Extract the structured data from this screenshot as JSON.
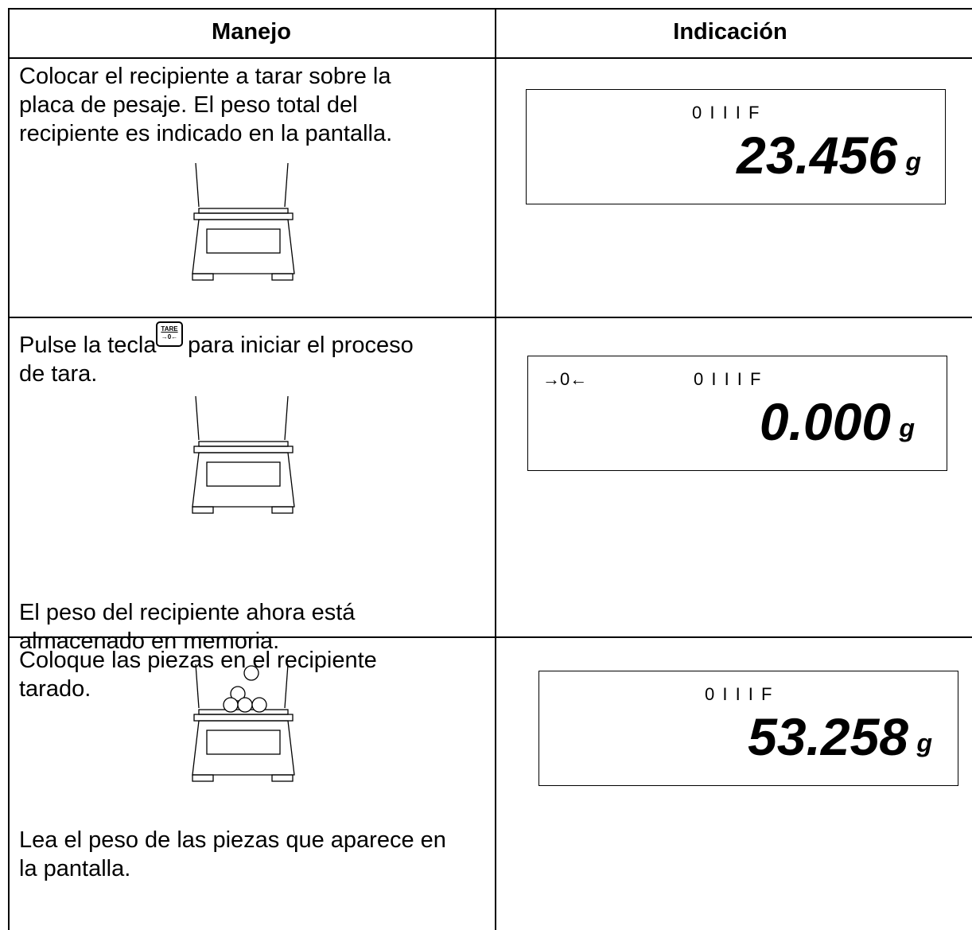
{
  "table": {
    "header": [
      "Manejo",
      "Indicación"
    ],
    "rows": [
      {
        "instruction": [
          "Colocar el recipiente a tarar sobre la",
          "placa de pesaje. El peso total del",
          "recipiente es indicado en la pantalla."
        ],
        "display": {
          "indicators": "0 I I I F",
          "reading": "23.456",
          "unit": "g"
        }
      },
      {
        "instruction": [
          "Pulse la tecla",
          "para iniciar el proceso",
          "de tara."
        ],
        "key": {
          "top": "TARE",
          "bottom": "→0←"
        },
        "note": [
          "El peso del recipiente ahora está",
          "almacenado en memoria."
        ],
        "display": {
          "zero": "→0←",
          "indicators": "0 I I I F",
          "reading": "0.000",
          "unit": "g"
        }
      },
      {
        "instruction": [
          "Coloque las piezas en el recipiente",
          "tarado."
        ],
        "note": [
          "Lea el peso de las piezas que aparece en",
          "la pantalla."
        ],
        "display": {
          "indicators": "0 I I I F",
          "reading": "53.258",
          "unit": "g"
        }
      }
    ]
  }
}
